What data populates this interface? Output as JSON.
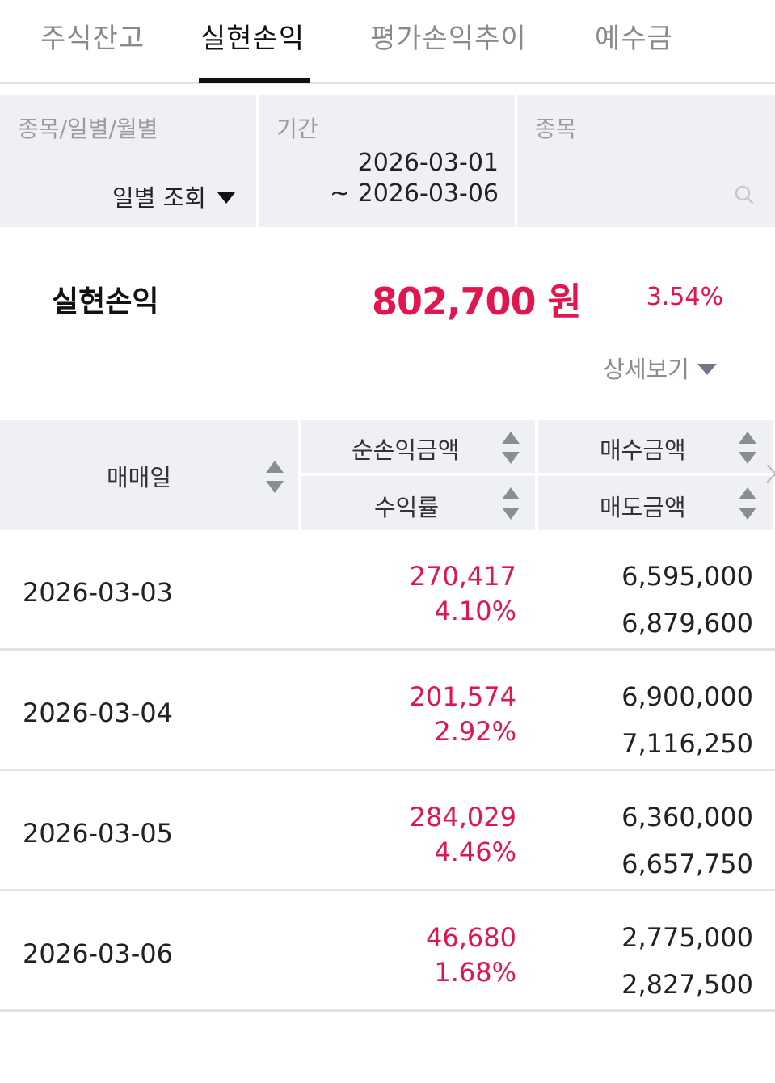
{
  "tabs": [
    {
      "label": "주식잔고"
    },
    {
      "label": "실현손익"
    },
    {
      "label": "평가손익추이"
    },
    {
      "label": "예수금"
    }
  ],
  "filters": {
    "type": {
      "label": "종목/일별/월별",
      "value": "일별 조회"
    },
    "period": {
      "label": "기간",
      "start": "2026-03-01",
      "end": "~ 2026-03-06"
    },
    "stock": {
      "label": "종목",
      "value": ""
    }
  },
  "summary": {
    "label": "실현손익",
    "amount": "802,700 원",
    "rate": "3.54%",
    "detail_label": "상세보기"
  },
  "table": {
    "headers": {
      "date": "매매일",
      "pnl": "순손익금액",
      "rate": "수익률",
      "buy": "매수금액",
      "sell": "매도금액"
    },
    "rows": [
      {
        "date": "2026-03-03",
        "pnl": "270,417",
        "rate": "4.10%",
        "buy": "6,595,000",
        "sell": "6,879,600"
      },
      {
        "date": "2026-03-04",
        "pnl": "201,574",
        "rate": "2.92%",
        "buy": "6,900,000",
        "sell": "7,116,250"
      },
      {
        "date": "2026-03-05",
        "pnl": "284,029",
        "rate": "4.46%",
        "buy": "6,360,000",
        "sell": "6,657,750"
      },
      {
        "date": "2026-03-06",
        "pnl": "46,680",
        "rate": "1.68%",
        "buy": "2,775,000",
        "sell": "2,827,500"
      }
    ]
  },
  "colors": {
    "accent": "#e0174f",
    "panel": "#eff0f4"
  }
}
